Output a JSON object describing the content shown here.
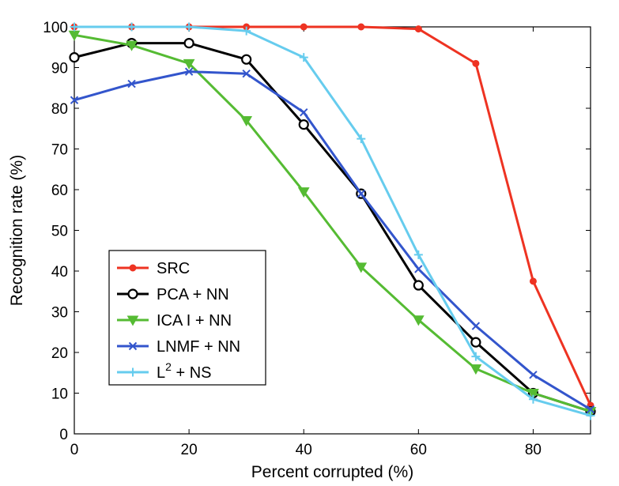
{
  "chart_data": {
    "type": "line",
    "xlabel": "Percent corrupted (%)",
    "ylabel": "Recognition rate (%)",
    "xlim": [
      0,
      90
    ],
    "ylim": [
      0,
      100
    ],
    "xticks": [
      0,
      20,
      40,
      60,
      80
    ],
    "yticks": [
      0,
      10,
      20,
      30,
      40,
      50,
      60,
      70,
      80,
      90,
      100
    ],
    "x": [
      0,
      10,
      20,
      30,
      40,
      50,
      60,
      70,
      80,
      90
    ],
    "grid": false,
    "legend_position": "bottom-left",
    "series": [
      {
        "name": "SRC",
        "marker": "dot",
        "color": "#ee3322",
        "values": [
          100,
          100,
          100,
          100,
          100,
          100,
          99.5,
          91,
          37.5,
          7
        ]
      },
      {
        "name": "PCA + NN",
        "marker": "circle",
        "color": "#000000",
        "values": [
          92.5,
          96,
          96,
          92,
          76,
          59,
          36.5,
          22.5,
          10,
          5.5
        ]
      },
      {
        "name": "ICA I + NN",
        "marker": "triangle",
        "color": "#55bb33",
        "values": [
          98,
          95.5,
          91,
          77,
          59.5,
          41,
          28,
          16,
          10,
          5.5
        ]
      },
      {
        "name": "LNMF + NN",
        "marker": "x",
        "color": "#3355cc",
        "values": [
          82,
          86,
          89,
          88.5,
          79,
          59,
          40.5,
          26.5,
          14.5,
          6
        ]
      },
      {
        "name": "L",
        "name_superscript": "2",
        "name_suffix": " + NS",
        "marker": "plus",
        "color": "#66ccee",
        "values": [
          100,
          100,
          100,
          99,
          92.5,
          72.5,
          44,
          19,
          8.5,
          4.5
        ]
      }
    ]
  }
}
